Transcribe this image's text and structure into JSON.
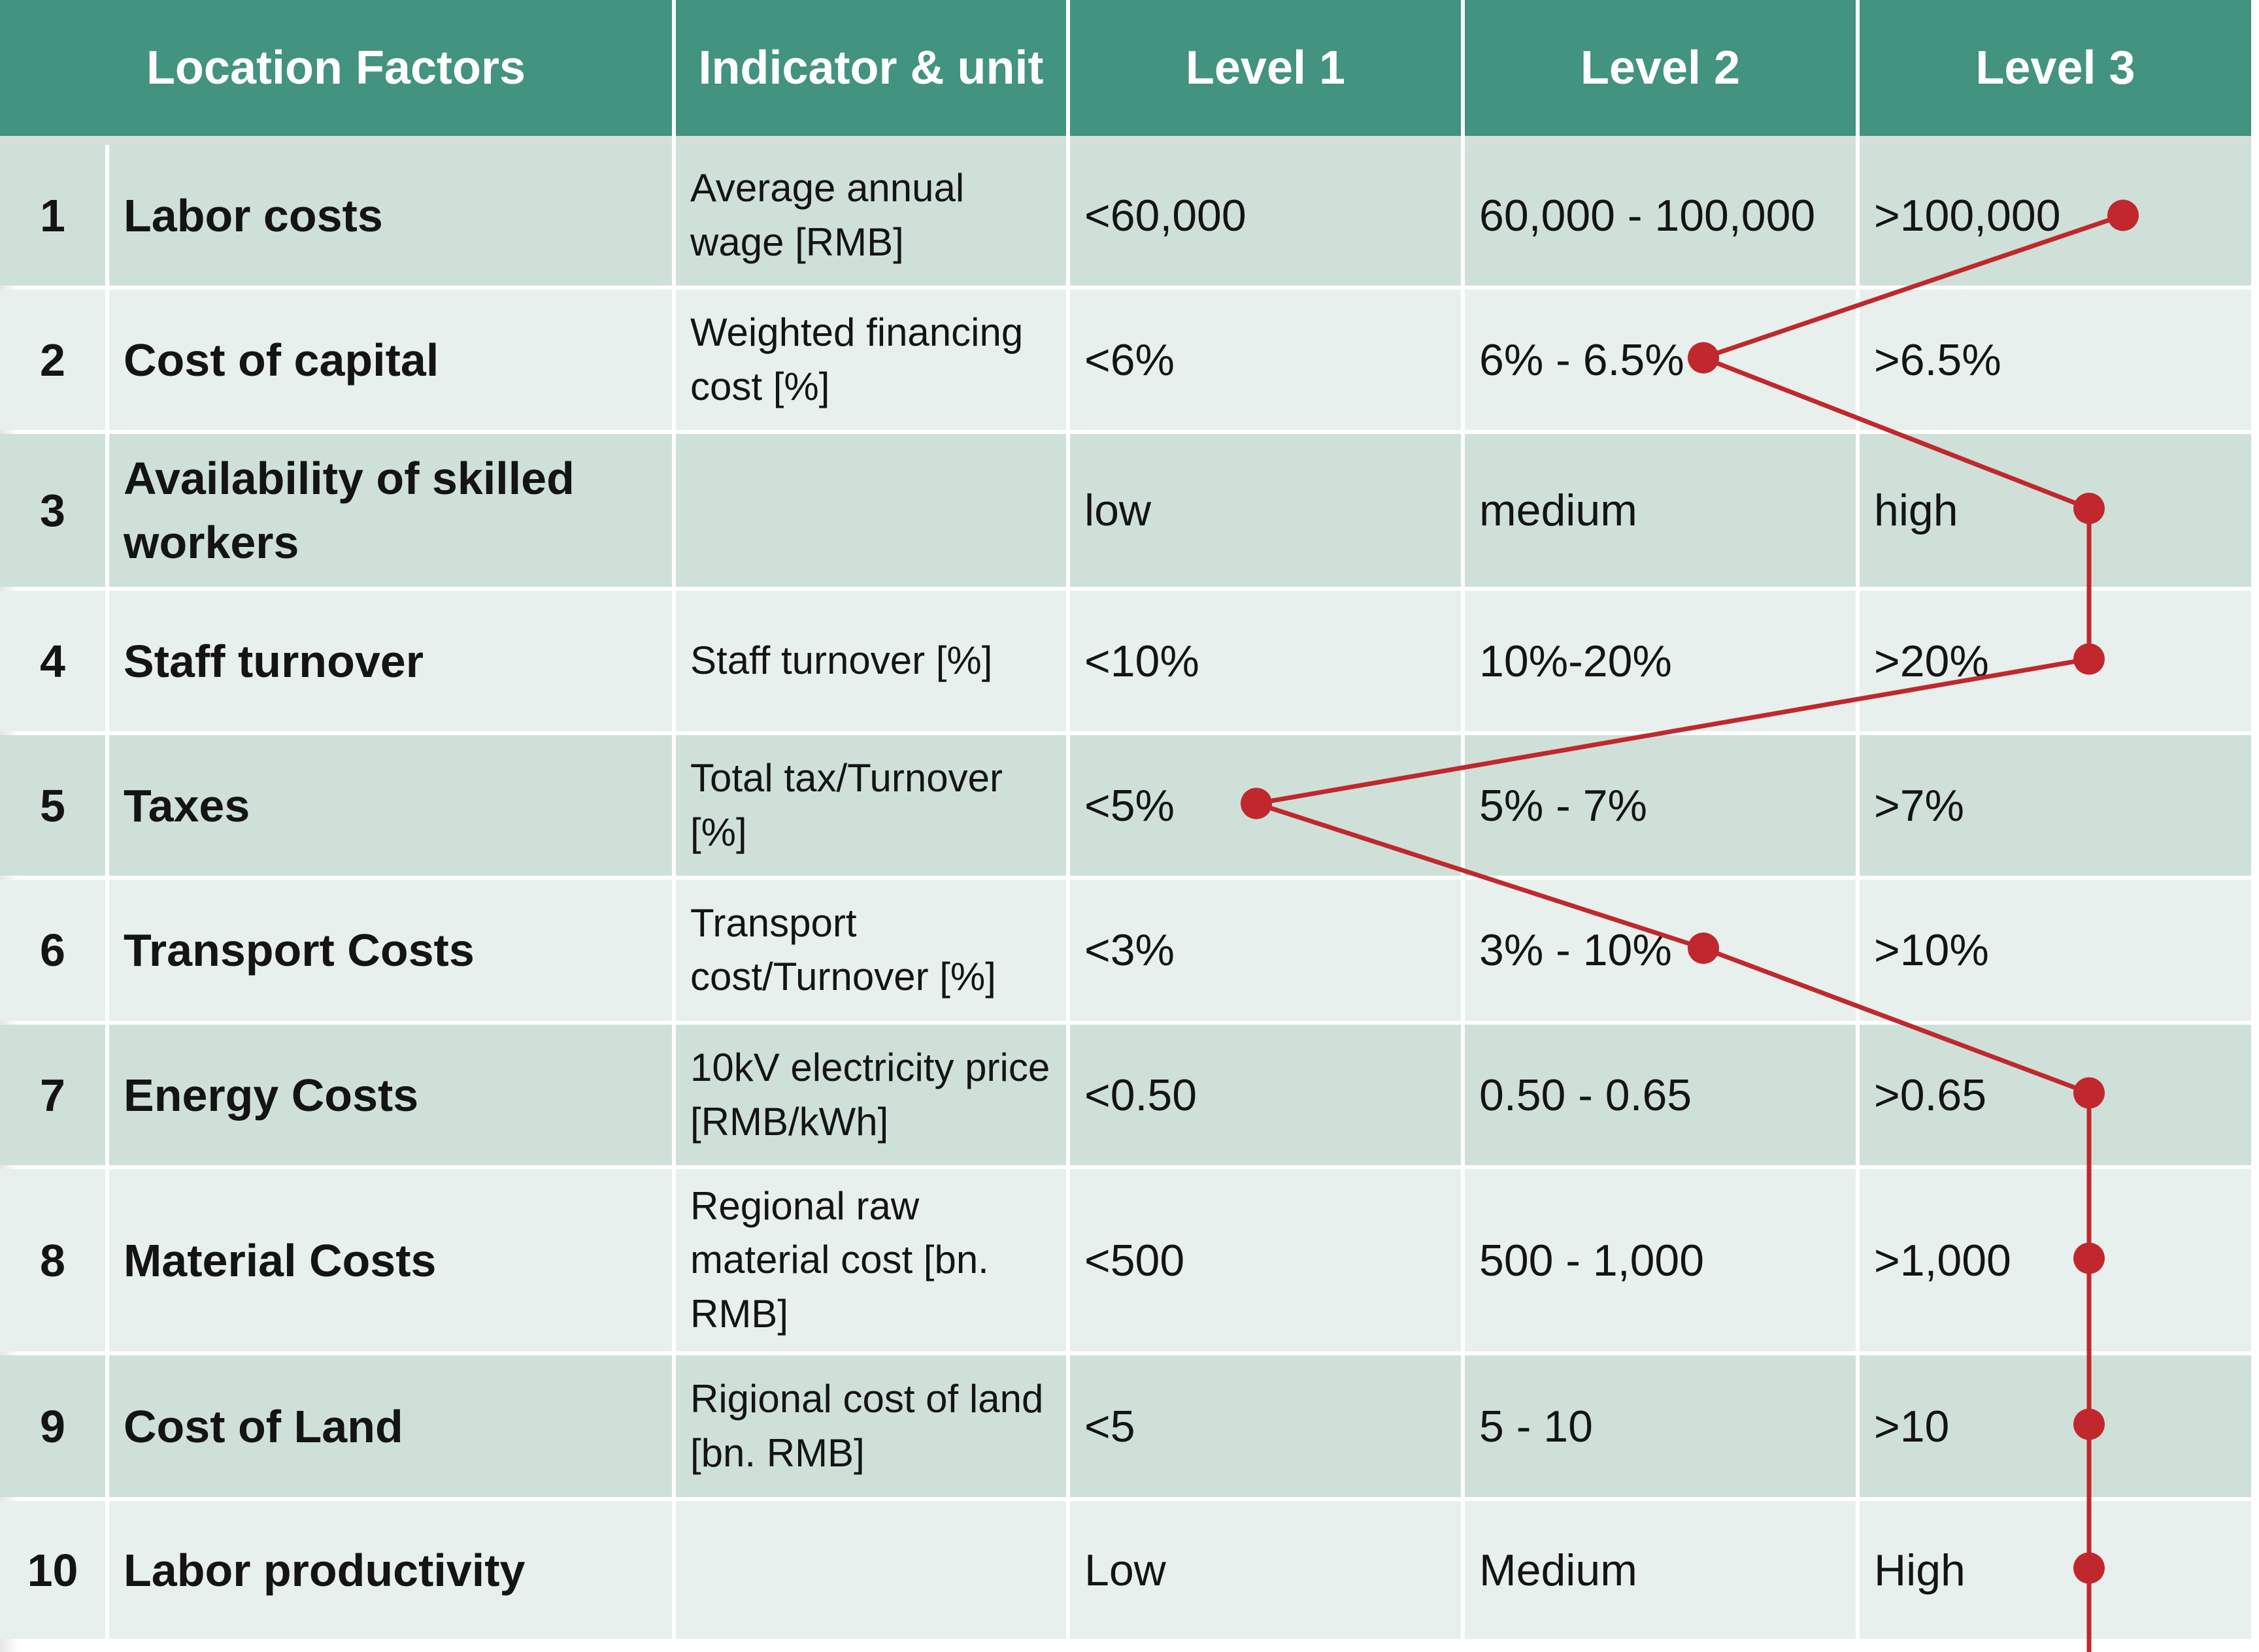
{
  "chart_data": {
    "type": "table",
    "headers": [
      "Location Factors",
      "Indicator & unit",
      "Level 1",
      "Level 2",
      "Level 3"
    ],
    "rows": [
      {
        "num": "1",
        "factor": "Labor costs",
        "indicator": "Average annual wage [RMB]",
        "levels": [
          "<60,000",
          "60,000 - 100,000",
          ">100,000"
        ],
        "selected_level": 3
      },
      {
        "num": "2",
        "factor": "Cost of capital",
        "indicator": "Weighted financing cost  [%]",
        "levels": [
          "<6%",
          "6% - 6.5%",
          ">6.5%"
        ],
        "selected_level": 2
      },
      {
        "num": "3",
        "factor": "Availability of skilled workers",
        "indicator": "",
        "levels": [
          "low",
          "medium",
          "high"
        ],
        "selected_level": 3
      },
      {
        "num": "4",
        "factor": "Staff turnover",
        "indicator": "Staff turnover [%]",
        "levels": [
          "<10%",
          "10%-20%",
          ">20%"
        ],
        "selected_level": 3
      },
      {
        "num": "5",
        "factor": "Taxes",
        "indicator": "Total tax/Turnover [%]",
        "levels": [
          "<5%",
          "5% - 7%",
          ">7%"
        ],
        "selected_level": 1
      },
      {
        "num": "6",
        "factor": "Transport Costs",
        "indicator": "Transport cost/Turnover [%]",
        "levels": [
          "<3%",
          "3% - 10%",
          ">10%"
        ],
        "selected_level": 2
      },
      {
        "num": "7",
        "factor": "Energy Costs",
        "indicator": "10kV electricity price [RMB/kWh]",
        "levels": [
          "<0.50",
          "0.50 - 0.65",
          ">0.65"
        ],
        "selected_level": 3
      },
      {
        "num": "8",
        "factor": "Material Costs",
        "indicator": "Regional raw material cost [bn. RMB]",
        "levels": [
          "<500",
          "500 - 1,000",
          ">1,000"
        ],
        "selected_level": 3
      },
      {
        "num": "9",
        "factor": "Cost of Land",
        "indicator": "Rigional cost of land [bn. RMB]",
        "levels": [
          "<5",
          "5 - 10",
          ">10"
        ],
        "selected_level": 3
      },
      {
        "num": "10",
        "factor": "Labor productivity",
        "indicator": "",
        "levels": [
          "Low",
          "Medium",
          "High"
        ],
        "selected_level": 3
      }
    ],
    "profile_color": "#c0282d",
    "header_color": "#42937f",
    "row_colors": [
      "#cfe0d9",
      "#e8f0ed"
    ]
  }
}
